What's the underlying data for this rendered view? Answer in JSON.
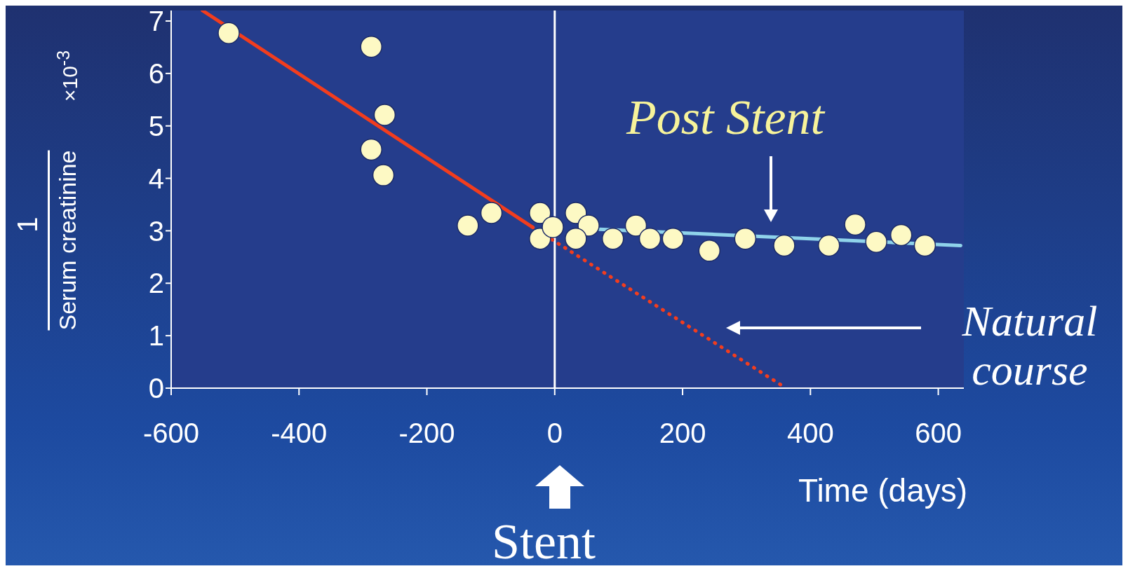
{
  "chart_data": {
    "type": "scatter",
    "ylabel": "Serum creatinine",
    "xlabel": "Time (days)",
    "annotations": [
      "Post Stent",
      "Natural course",
      "Stent",
      "1",
      "×10$^{-3}$"
    ],
    "xlim": [
      -600,
      640
    ],
    "xticks": [
      -600,
      -400,
      -200,
      0,
      200,
      400,
      600
    ],
    "ylim": [
      0,
      7.2
    ],
    "yticks": [
      0,
      1,
      2,
      3,
      4,
      5,
      6,
      7
    ],
    "ref_lines": [
      {
        "axis": "x",
        "value": 0,
        "color": "#ffffff",
        "line_style": "solid"
      }
    ],
    "series": [
      {
        "marker": "circle",
        "color": "#fdf9c4",
        "x": [
          -510,
          -287,
          -266,
          -287,
          -268,
          -136,
          -99,
          -23,
          -23,
          -3,
          33,
          53,
          33,
          91,
          127,
          149,
          185,
          242,
          298,
          359,
          429,
          470,
          503,
          542,
          579
        ],
        "values": [
          6.77,
          6.51,
          5.21,
          4.55,
          4.06,
          3.1,
          3.34,
          3.34,
          2.85,
          3.07,
          3.34,
          3.1,
          2.85,
          2.85,
          3.1,
          2.85,
          2.85,
          2.62,
          2.85,
          2.72,
          2.72,
          3.12,
          2.79,
          2.92,
          2.72
        ]
      },
      {
        "type": "line",
        "marker": "none",
        "color": "#f23d1e",
        "line_style": "solid",
        "x": [
          -551,
          -35
        ],
        "values": [
          7.2,
          3.07
        ]
      },
      {
        "type": "line",
        "marker": "none",
        "color": "#f23d1e",
        "line_style": "dotted",
        "x": [
          -35,
          362
        ],
        "values": [
          3.07,
          0
        ]
      },
      {
        "type": "line",
        "marker": "none",
        "color": "#8fd3ea",
        "line_style": "solid",
        "x": [
          70,
          635
        ],
        "values": [
          3.03,
          2.72
        ]
      }
    ]
  }
}
